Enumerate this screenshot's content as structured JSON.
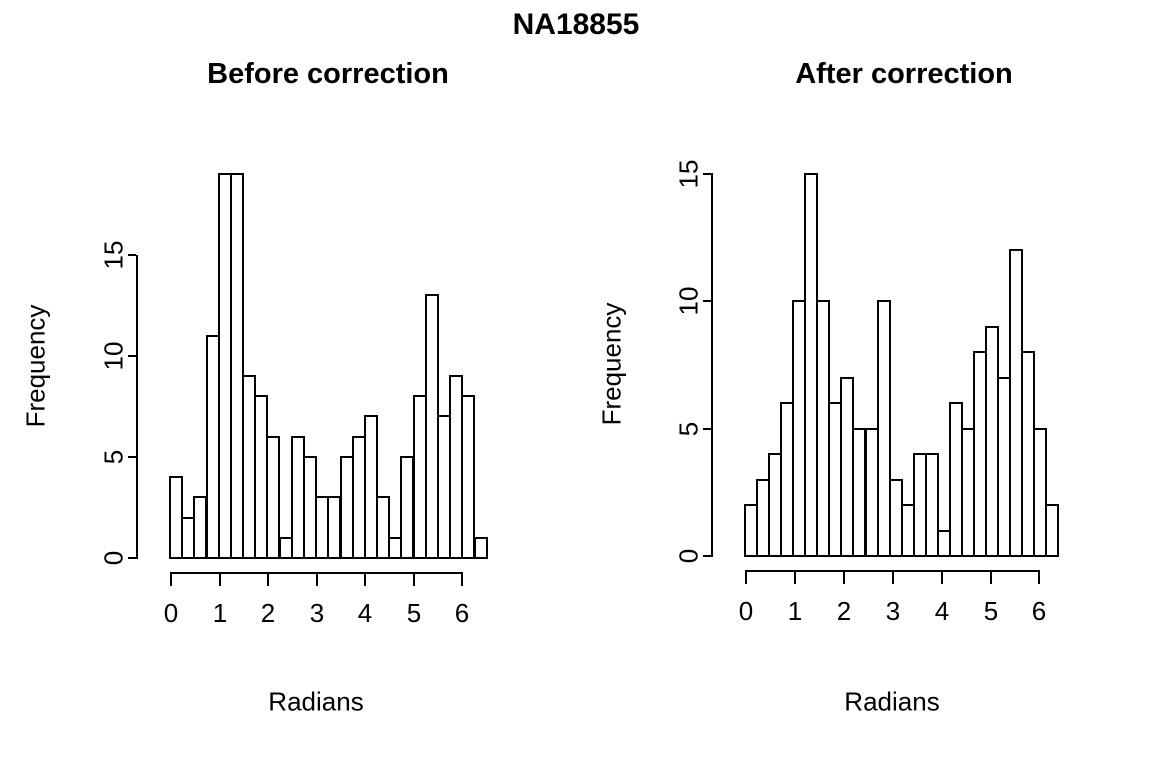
{
  "title": "NA18855",
  "panels": [
    {
      "title": "Before correction",
      "xlabel": "Radians",
      "ylabel": "Frequency"
    },
    {
      "title": "After correction",
      "xlabel": "Radians",
      "ylabel": "Frequency"
    }
  ],
  "chart_data": [
    {
      "type": "bar",
      "title": "Before correction",
      "xlabel": "Radians",
      "ylabel": "Frequency",
      "bin_start": 0,
      "bin_width": 0.25,
      "values": [
        4,
        2,
        3,
        11,
        19,
        19,
        9,
        8,
        6,
        1,
        6,
        5,
        3,
        3,
        5,
        6,
        7,
        3,
        1,
        5,
        8,
        13,
        7,
        9,
        8,
        1
      ],
      "xticks": [
        0,
        1,
        2,
        3,
        4,
        5,
        6
      ],
      "yticks": [
        0,
        5,
        10,
        15
      ],
      "xlim": [
        0,
        6.5
      ],
      "ylim": [
        0,
        19
      ],
      "grid": false,
      "legend": null,
      "bar_fill": "#ffffff",
      "bar_stroke": "#000000"
    },
    {
      "type": "bar",
      "title": "After correction",
      "xlabel": "Radians",
      "ylabel": "Frequency",
      "bin_start": 0,
      "bin_width": 0.25,
      "values": [
        2,
        3,
        4,
        6,
        10,
        15,
        10,
        6,
        7,
        5,
        5,
        10,
        3,
        2,
        4,
        4,
        1,
        6,
        5,
        8,
        9,
        7,
        12,
        8,
        5,
        2
      ],
      "xticks": [
        0,
        1,
        2,
        3,
        4,
        5,
        6
      ],
      "yticks": [
        0,
        5,
        10,
        15
      ],
      "xlim": [
        0,
        6.5
      ],
      "ylim": [
        0,
        15
      ],
      "grid": false,
      "legend": null,
      "bar_fill": "#ffffff",
      "bar_stroke": "#000000"
    }
  ]
}
